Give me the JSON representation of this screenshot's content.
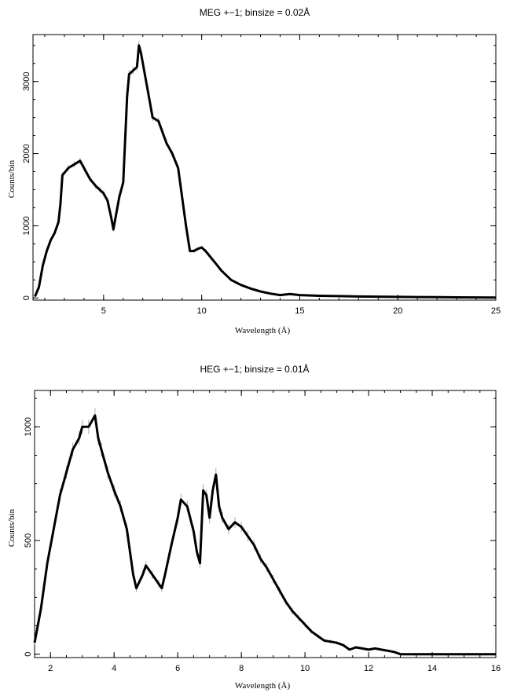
{
  "chart_data": [
    {
      "type": "line",
      "title": "MEG +−1; binsize = 0.02Å",
      "xlabel": "Wavelength (Å)",
      "ylabel": "Counts/bin",
      "xlim": [
        1.4,
        25
      ],
      "ylim": [
        -30,
        3650
      ],
      "xticks": [
        5,
        10,
        15,
        20,
        25
      ],
      "yticks": [
        0,
        1000,
        2000,
        3000
      ],
      "grid": false,
      "series": [
        {
          "color": "#000000",
          "points": [
            [
              1.5,
              20
            ],
            [
              1.7,
              150
            ],
            [
              1.9,
              450
            ],
            [
              2.1,
              650
            ],
            [
              2.3,
              800
            ],
            [
              2.5,
              900
            ],
            [
              2.7,
              1050
            ],
            [
              2.8,
              1300
            ],
            [
              2.9,
              1700
            ],
            [
              3.2,
              1800
            ],
            [
              3.5,
              1850
            ],
            [
              3.8,
              1900
            ],
            [
              4.0,
              1800
            ],
            [
              4.3,
              1650
            ],
            [
              4.6,
              1550
            ],
            [
              4.8,
              1500
            ],
            [
              5.0,
              1450
            ],
            [
              5.2,
              1350
            ],
            [
              5.4,
              1100
            ],
            [
              5.5,
              950
            ],
            [
              5.6,
              1100
            ],
            [
              5.8,
              1400
            ],
            [
              6.0,
              1600
            ],
            [
              6.1,
              2200
            ],
            [
              6.2,
              2800
            ],
            [
              6.3,
              3100
            ],
            [
              6.5,
              3150
            ],
            [
              6.7,
              3200
            ],
            [
              6.8,
              3500
            ],
            [
              6.9,
              3400
            ],
            [
              7.1,
              3100
            ],
            [
              7.3,
              2800
            ],
            [
              7.5,
              2500
            ],
            [
              7.8,
              2450
            ],
            [
              8.0,
              2300
            ],
            [
              8.2,
              2150
            ],
            [
              8.5,
              2000
            ],
            [
              8.8,
              1800
            ],
            [
              9.0,
              1400
            ],
            [
              9.2,
              1000
            ],
            [
              9.4,
              650
            ],
            [
              9.6,
              650
            ],
            [
              9.8,
              680
            ],
            [
              10.0,
              700
            ],
            [
              10.2,
              650
            ],
            [
              10.5,
              550
            ],
            [
              10.8,
              450
            ],
            [
              11.0,
              380
            ],
            [
              11.5,
              250
            ],
            [
              12.0,
              180
            ],
            [
              12.5,
              130
            ],
            [
              13.0,
              90
            ],
            [
              13.5,
              60
            ],
            [
              14.0,
              40
            ],
            [
              14.5,
              55
            ],
            [
              15.0,
              40
            ],
            [
              16.0,
              30
            ],
            [
              17.0,
              25
            ],
            [
              18.0,
              20
            ],
            [
              19.0,
              18
            ],
            [
              20.0,
              15
            ],
            [
              21.0,
              12
            ],
            [
              22.0,
              10
            ],
            [
              23.0,
              8
            ],
            [
              24.0,
              7
            ],
            [
              25.0,
              6
            ]
          ]
        }
      ]
    },
    {
      "type": "line",
      "title": "HEG +−1; binsize = 0.01Å",
      "xlabel": "Wavelength (Å)",
      "ylabel": "Counts/bin",
      "xlim": [
        1.5,
        16
      ],
      "ylim": [
        -15,
        1160
      ],
      "xticks": [
        2,
        4,
        6,
        8,
        10,
        12,
        14,
        16
      ],
      "yticks": [
        0,
        500,
        1000
      ],
      "grid": false,
      "series": [
        {
          "color": "#000000",
          "points": [
            [
              1.5,
              50
            ],
            [
              1.7,
              200
            ],
            [
              1.9,
              400
            ],
            [
              2.1,
              550
            ],
            [
              2.3,
              700
            ],
            [
              2.5,
              800
            ],
            [
              2.7,
              900
            ],
            [
              2.9,
              950
            ],
            [
              3.0,
              1000
            ],
            [
              3.2,
              1000
            ],
            [
              3.4,
              1050
            ],
            [
              3.5,
              950
            ],
            [
              3.6,
              900
            ],
            [
              3.8,
              800
            ],
            [
              4.0,
              720
            ],
            [
              4.2,
              650
            ],
            [
              4.4,
              550
            ],
            [
              4.6,
              350
            ],
            [
              4.7,
              290
            ],
            [
              4.9,
              350
            ],
            [
              5.0,
              390
            ],
            [
              5.2,
              350
            ],
            [
              5.4,
              310
            ],
            [
              5.5,
              290
            ],
            [
              5.6,
              350
            ],
            [
              5.8,
              480
            ],
            [
              6.0,
              600
            ],
            [
              6.1,
              680
            ],
            [
              6.3,
              650
            ],
            [
              6.5,
              540
            ],
            [
              6.6,
              450
            ],
            [
              6.7,
              400
            ],
            [
              6.8,
              720
            ],
            [
              6.9,
              700
            ],
            [
              7.0,
              600
            ],
            [
              7.1,
              720
            ],
            [
              7.2,
              790
            ],
            [
              7.3,
              650
            ],
            [
              7.4,
              600
            ],
            [
              7.6,
              550
            ],
            [
              7.8,
              580
            ],
            [
              8.0,
              560
            ],
            [
              8.2,
              520
            ],
            [
              8.4,
              480
            ],
            [
              8.6,
              420
            ],
            [
              8.8,
              380
            ],
            [
              9.0,
              330
            ],
            [
              9.2,
              280
            ],
            [
              9.4,
              230
            ],
            [
              9.6,
              190
            ],
            [
              9.8,
              160
            ],
            [
              10.0,
              130
            ],
            [
              10.2,
              100
            ],
            [
              10.4,
              80
            ],
            [
              10.6,
              60
            ],
            [
              10.8,
              55
            ],
            [
              11.0,
              50
            ],
            [
              11.2,
              40
            ],
            [
              11.4,
              20
            ],
            [
              11.6,
              30
            ],
            [
              11.8,
              25
            ],
            [
              12.0,
              20
            ],
            [
              12.2,
              25
            ],
            [
              12.4,
              20
            ],
            [
              12.6,
              15
            ],
            [
              12.8,
              10
            ],
            [
              13.0,
              0
            ],
            [
              14.0,
              0
            ],
            [
              15.0,
              0
            ],
            [
              16.0,
              0
            ]
          ]
        }
      ]
    }
  ]
}
